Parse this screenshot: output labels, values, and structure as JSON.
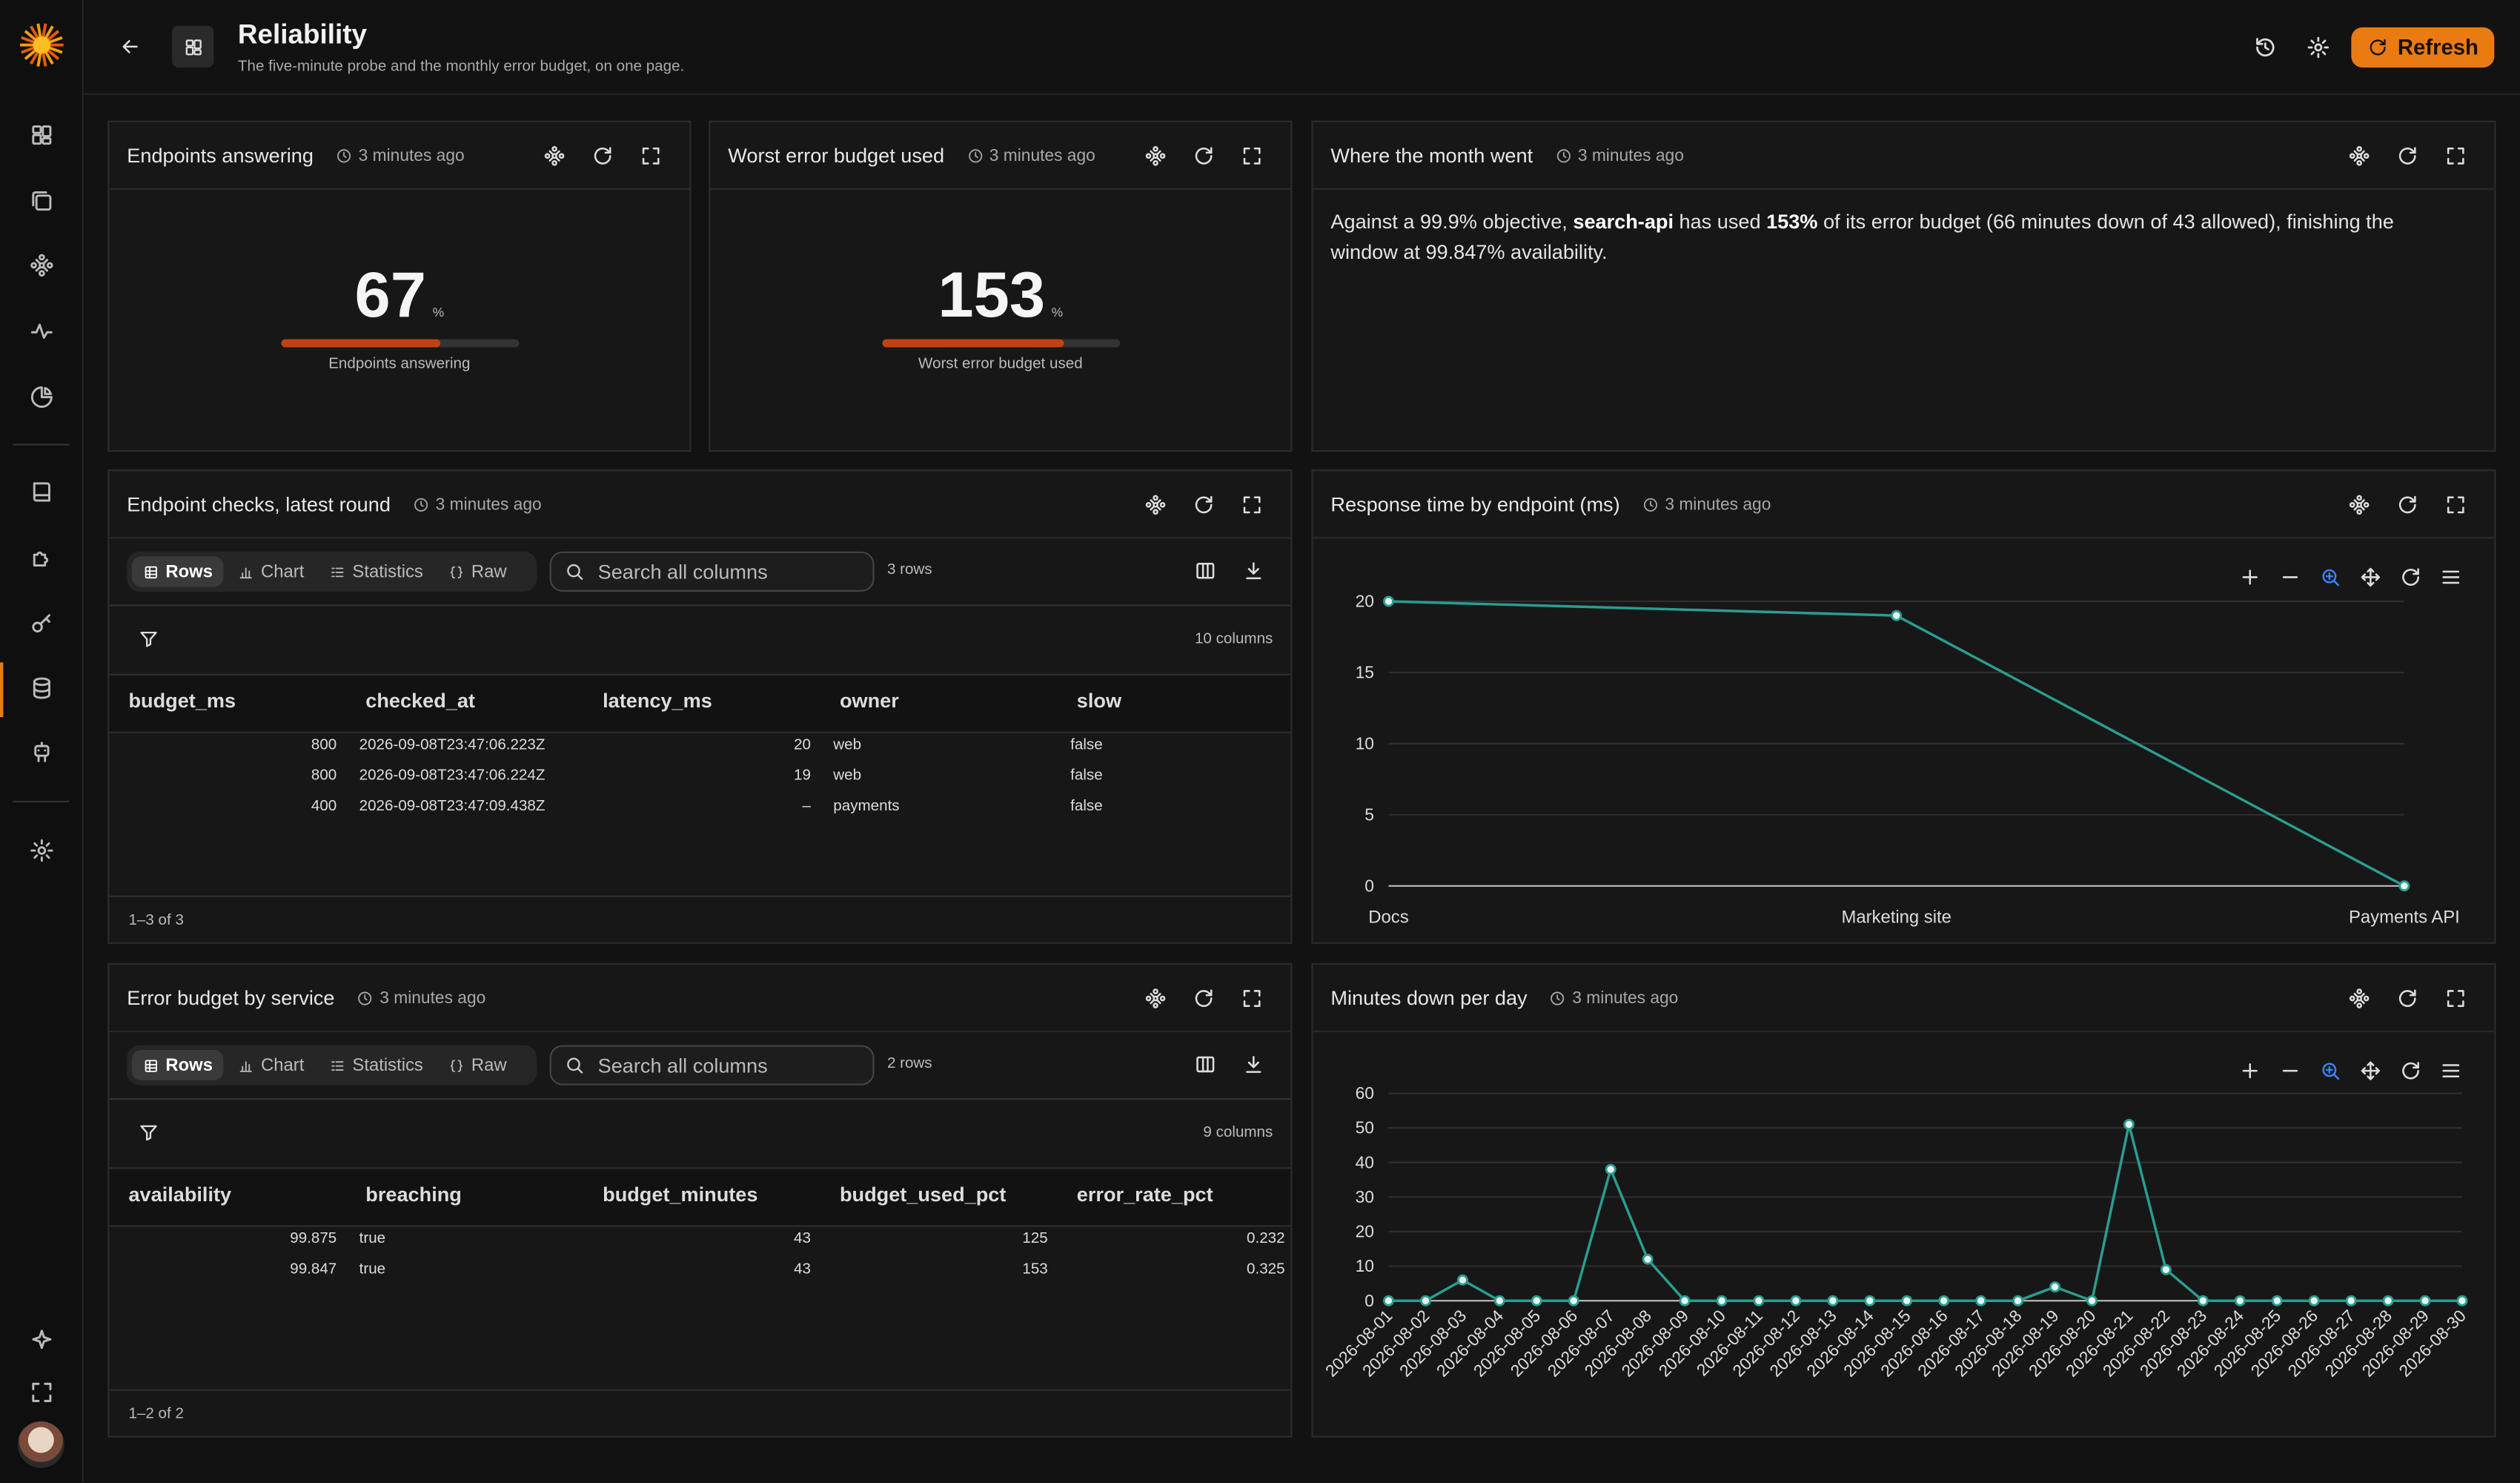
{
  "header": {
    "title": "Reliability",
    "subtitle": "The five-minute probe and the monthly error budget, on one page.",
    "refresh": "Refresh"
  },
  "stats": [
    {
      "title": "Endpoints answering",
      "updated": "3 minutes ago",
      "value": 67,
      "unit": "%",
      "caption": "Endpoints answering",
      "gauge_range": [
        0,
        100
      ],
      "color": "#c2410c"
    },
    {
      "title": "Worst error budget used",
      "updated": "3 minutes ago",
      "value": 153,
      "unit": "%",
      "caption": "Worst error budget used",
      "gauge_range": [
        0,
        200
      ],
      "color": "#c2410c"
    }
  ],
  "summary": {
    "title": "Where the month went",
    "updated": "3 minutes ago",
    "segments": [
      {
        "text": "Against a 99.9% objective, "
      },
      {
        "text": "search-api",
        "bold": true
      },
      {
        "text": " has used "
      },
      {
        "text": "153%",
        "bold": true
      },
      {
        "text": " of its error budget (66 minutes down of 43 allowed), finishing the window at 99.847% availability."
      }
    ]
  },
  "tables": [
    {
      "title": "Endpoint checks, latest round",
      "updated": "3 minutes ago",
      "tabs": [
        "Rows",
        "Chart",
        "Statistics",
        "Raw"
      ],
      "search": "Search all columns",
      "row_count": "3 rows",
      "column_count": "10 columns",
      "columns": [
        "budget_ms",
        "checked_at",
        "latency_ms",
        "owner",
        "slow"
      ],
      "align": [
        "right",
        "left",
        "right",
        "left",
        "left"
      ],
      "rows": [
        [
          "800",
          "2026-09-08T23:47:06.223Z",
          "20",
          "web",
          "false"
        ],
        [
          "800",
          "2026-09-08T23:47:06.224Z",
          "19",
          "web",
          "false"
        ],
        [
          "400",
          "2026-09-08T23:47:09.438Z",
          "–",
          "payments",
          "false"
        ]
      ],
      "footer": "1–3 of 3"
    },
    {
      "title": "Error budget by service",
      "updated": "3 minutes ago",
      "tabs": [
        "Rows",
        "Chart",
        "Statistics",
        "Raw"
      ],
      "search": "Search all columns",
      "row_count": "2 rows",
      "column_count": "9 columns",
      "columns": [
        "availability",
        "breaching",
        "budget_minutes",
        "budget_used_pct",
        "error_rate_pct"
      ],
      "align": [
        "right",
        "left",
        "right",
        "right",
        "right"
      ],
      "rows": [
        [
          "99.875",
          "true",
          "43",
          "125",
          "0.232"
        ],
        [
          "99.847",
          "true",
          "43",
          "153",
          "0.325"
        ]
      ],
      "footer": "1–2 of 2"
    }
  ],
  "charts": [
    {
      "type": "line",
      "title": "Response time by endpoint (ms)",
      "updated": "3 minutes ago",
      "categories": [
        "Docs",
        "Marketing site",
        "Payments API"
      ],
      "values": [
        20,
        19,
        0
      ],
      "color": "#2a9d8f",
      "ylim": [
        0,
        20
      ],
      "yticks": [
        0,
        5,
        10,
        15,
        20
      ],
      "grid": true,
      "rotate_labels": false
    },
    {
      "type": "line",
      "title": "Minutes down per day",
      "updated": "3 minutes ago",
      "categories": [
        "2026-08-01",
        "2026-08-02",
        "2026-08-03",
        "2026-08-04",
        "2026-08-05",
        "2026-08-06",
        "2026-08-07",
        "2026-08-08",
        "2026-08-09",
        "2026-08-10",
        "2026-08-11",
        "2026-08-12",
        "2026-08-13",
        "2026-08-14",
        "2026-08-15",
        "2026-08-16",
        "2026-08-17",
        "2026-08-18",
        "2026-08-19",
        "2026-08-20",
        "2026-08-21",
        "2026-08-22",
        "2026-08-23",
        "2026-08-24",
        "2026-08-25",
        "2026-08-26",
        "2026-08-27",
        "2026-08-28",
        "2026-08-29",
        "2026-08-30"
      ],
      "values": [
        0,
        0,
        6,
        0,
        0,
        0,
        38,
        12,
        0,
        0,
        0,
        0,
        0,
        0,
        0,
        0,
        0,
        0,
        4,
        0,
        51,
        9,
        0,
        0,
        0,
        0,
        0,
        0,
        0,
        0
      ],
      "color": "#2a9d8f",
      "ylim": [
        0,
        60
      ],
      "yticks": [
        0,
        10,
        20,
        30,
        40,
        50,
        60
      ],
      "grid": true,
      "rotate_labels": true
    }
  ]
}
